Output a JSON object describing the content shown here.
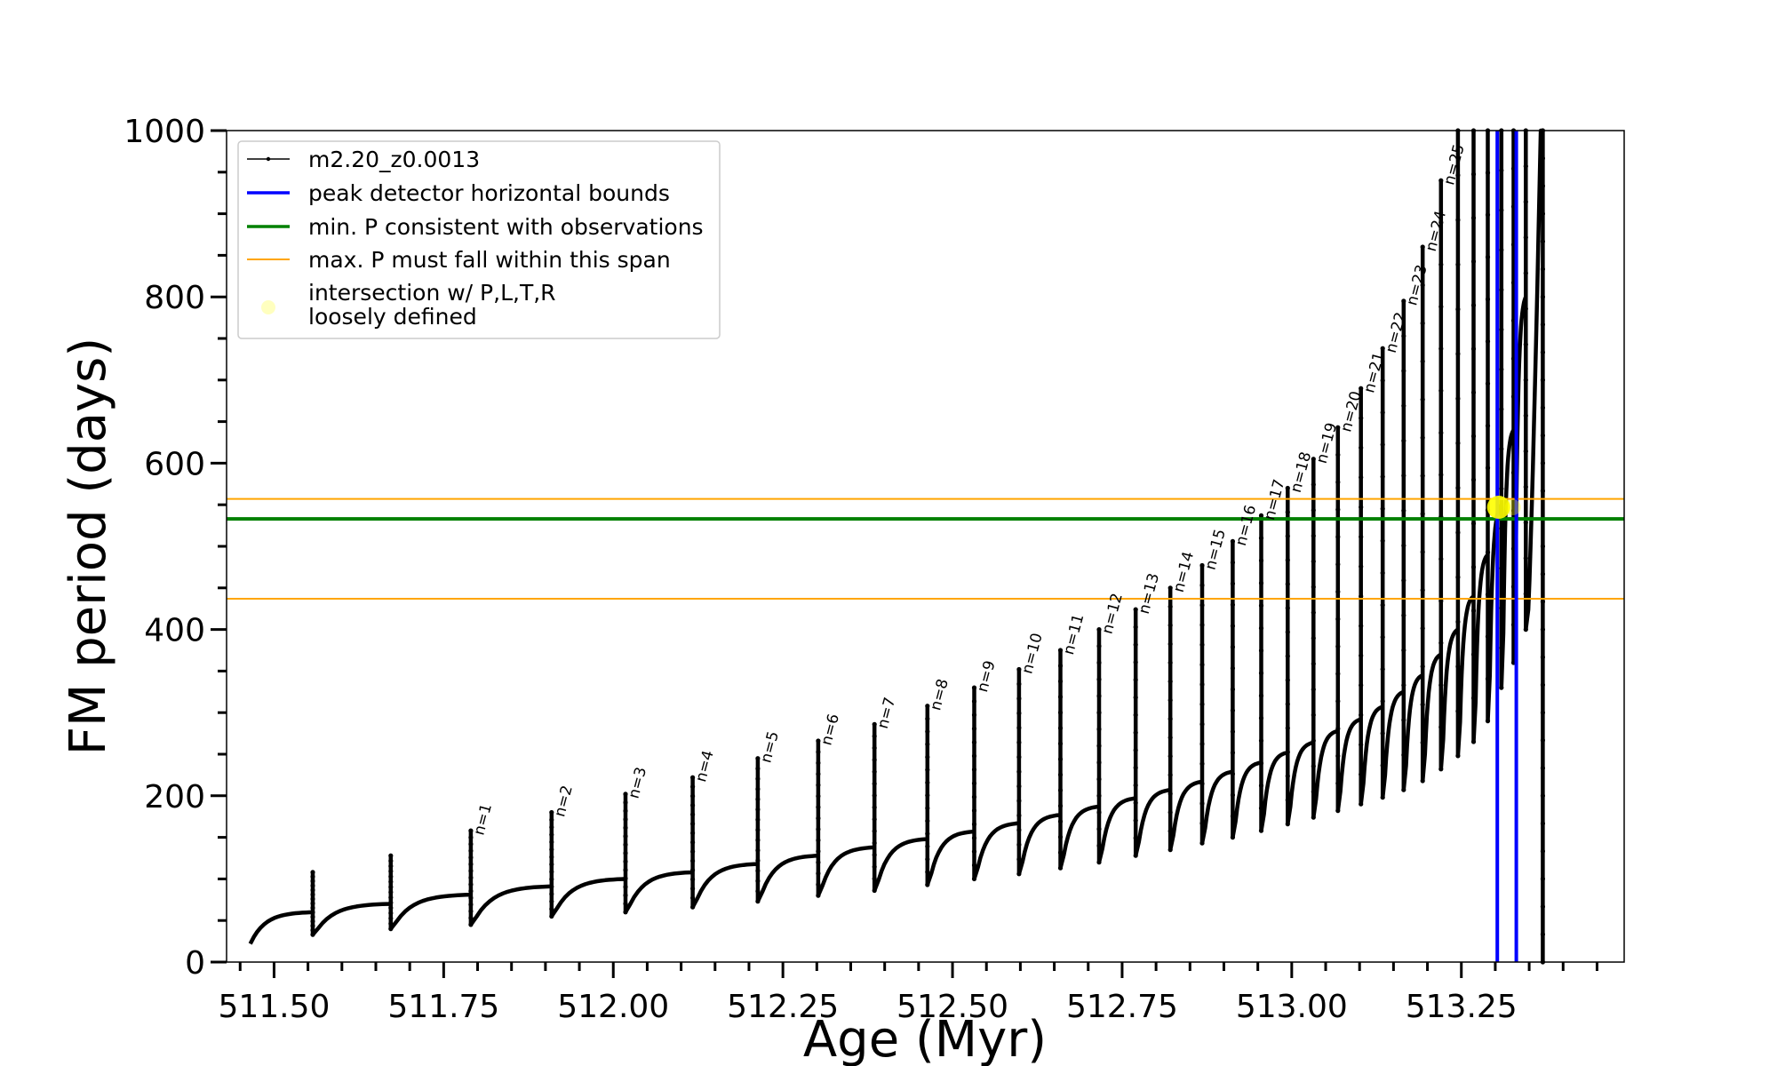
{
  "chart_data": {
    "type": "line",
    "title": "",
    "xlabel": "Age (Myr)",
    "ylabel": "FM period (days)",
    "xlim": [
      511.43,
      513.49
    ],
    "ylim": [
      0,
      1000
    ],
    "x_ticks": [
      "511.50",
      "511.75",
      "512.00",
      "512.25",
      "512.50",
      "512.75",
      "513.00",
      "513.25"
    ],
    "y_ticks": [
      "0",
      "200",
      "400",
      "600",
      "800",
      "1000"
    ],
    "legend": {
      "placement": "upper-left",
      "entries": [
        {
          "label": "m2.20_z0.0013",
          "style": "line-marker",
          "color": "#000000"
        },
        {
          "label": "peak detector horizontal bounds",
          "style": "line",
          "color": "#0000ff"
        },
        {
          "label": "min. P consistent with observations",
          "style": "line",
          "color": "#008000"
        },
        {
          "label": "max. P must fall within this span",
          "style": "line",
          "color": "#ffa500"
        },
        {
          "label": "intersection w/ P,L,T,R",
          "label2": "loosely defined",
          "style": "marker",
          "color": "#ffff00"
        }
      ]
    },
    "series": [
      {
        "name": "m2.20_z0.0013",
        "color": "#000000",
        "pulses": [
          {
            "x": 511.557,
            "pre": 60,
            "spike": 108,
            "drop": 33
          },
          {
            "x": 511.672,
            "pre": 70,
            "spike": 128,
            "drop": 40
          },
          {
            "x": 511.79,
            "pre": 81,
            "spike": 158,
            "drop": 45,
            "label": "n=1"
          },
          {
            "x": 511.909,
            "pre": 91,
            "spike": 180,
            "drop": 55,
            "label": "n=2"
          },
          {
            "x": 512.018,
            "pre": 100,
            "spike": 202,
            "drop": 60,
            "label": "n=3"
          },
          {
            "x": 512.117,
            "pre": 108,
            "spike": 222,
            "drop": 66,
            "label": "n=4"
          },
          {
            "x": 512.213,
            "pre": 118,
            "spike": 245,
            "drop": 73,
            "label": "n=5"
          },
          {
            "x": 512.302,
            "pre": 128,
            "spike": 266,
            "drop": 80,
            "label": "n=6"
          },
          {
            "x": 512.385,
            "pre": 138,
            "spike": 286,
            "drop": 86,
            "label": "n=7"
          },
          {
            "x": 512.463,
            "pre": 148,
            "spike": 308,
            "drop": 93,
            "label": "n=8"
          },
          {
            "x": 512.532,
            "pre": 157,
            "spike": 330,
            "drop": 100,
            "label": "n=9"
          },
          {
            "x": 512.598,
            "pre": 167,
            "spike": 352,
            "drop": 106,
            "label": "n=10"
          },
          {
            "x": 512.659,
            "pre": 177,
            "spike": 375,
            "drop": 113,
            "label": "n=11"
          },
          {
            "x": 512.716,
            "pre": 187,
            "spike": 400,
            "drop": 120,
            "label": "n=12"
          },
          {
            "x": 512.77,
            "pre": 197,
            "spike": 424,
            "drop": 128,
            "label": "n=13"
          },
          {
            "x": 512.821,
            "pre": 207,
            "spike": 450,
            "drop": 135,
            "label": "n=14"
          },
          {
            "x": 512.868,
            "pre": 217,
            "spike": 477,
            "drop": 143,
            "label": "n=15"
          },
          {
            "x": 512.913,
            "pre": 229,
            "spike": 506,
            "drop": 150,
            "label": "n=16"
          },
          {
            "x": 512.955,
            "pre": 240,
            "spike": 537,
            "drop": 158,
            "label": "n=17"
          },
          {
            "x": 512.994,
            "pre": 252,
            "spike": 570,
            "drop": 166,
            "label": "n=18"
          },
          {
            "x": 513.032,
            "pre": 264,
            "spike": 605,
            "drop": 174,
            "label": "n=19"
          },
          {
            "x": 513.068,
            "pre": 278,
            "spike": 643,
            "drop": 182,
            "label": "n=20"
          },
          {
            "x": 513.102,
            "pre": 292,
            "spike": 690,
            "drop": 190,
            "label": "n=21"
          },
          {
            "x": 513.134,
            "pre": 307,
            "spike": 738,
            "drop": 198,
            "label": "n=22"
          },
          {
            "x": 513.165,
            "pre": 325,
            "spike": 795,
            "drop": 207,
            "label": "n=23"
          },
          {
            "x": 513.193,
            "pre": 345,
            "spike": 860,
            "drop": 218,
            "label": "n=24"
          },
          {
            "x": 513.22,
            "pre": 370,
            "spike": 940,
            "drop": 232,
            "label": "n=25"
          },
          {
            "x": 513.245,
            "pre": 400,
            "spike": 1000,
            "drop": 248
          },
          {
            "x": 513.268,
            "pre": 440,
            "spike": 1000,
            "drop": 265
          },
          {
            "x": 513.289,
            "pre": 490,
            "spike": 1000,
            "drop": 290
          },
          {
            "x": 513.309,
            "pre": 550,
            "spike": 1000,
            "drop": 330
          },
          {
            "x": 513.327,
            "pre": 640,
            "spike": 1000,
            "drop": 360
          },
          {
            "x": 513.345,
            "pre": 800,
            "spike": 1000,
            "drop": 400
          }
        ],
        "start": {
          "x": 511.465,
          "y": 22
        },
        "end": {
          "x": 513.37,
          "y": 0
        }
      }
    ],
    "reference_lines": {
      "horizontal": [
        {
          "y": 557,
          "color": "#ffa500",
          "name": "max. P must fall within this span"
        },
        {
          "y": 533,
          "color": "#008000",
          "name": "min. P consistent with observations"
        },
        {
          "y": 437,
          "color": "#ffa500",
          "name": "max. P must fall within this span"
        }
      ],
      "vertical": [
        {
          "x": 513.303,
          "color": "#0000ff",
          "name": "peak detector horizontal bounds"
        },
        {
          "x": 513.331,
          "color": "#0000ff",
          "name": "peak detector horizontal bounds"
        }
      ]
    },
    "intersection": {
      "x": 513.305,
      "y": 547,
      "color": "#ffff00"
    },
    "grid": false
  }
}
